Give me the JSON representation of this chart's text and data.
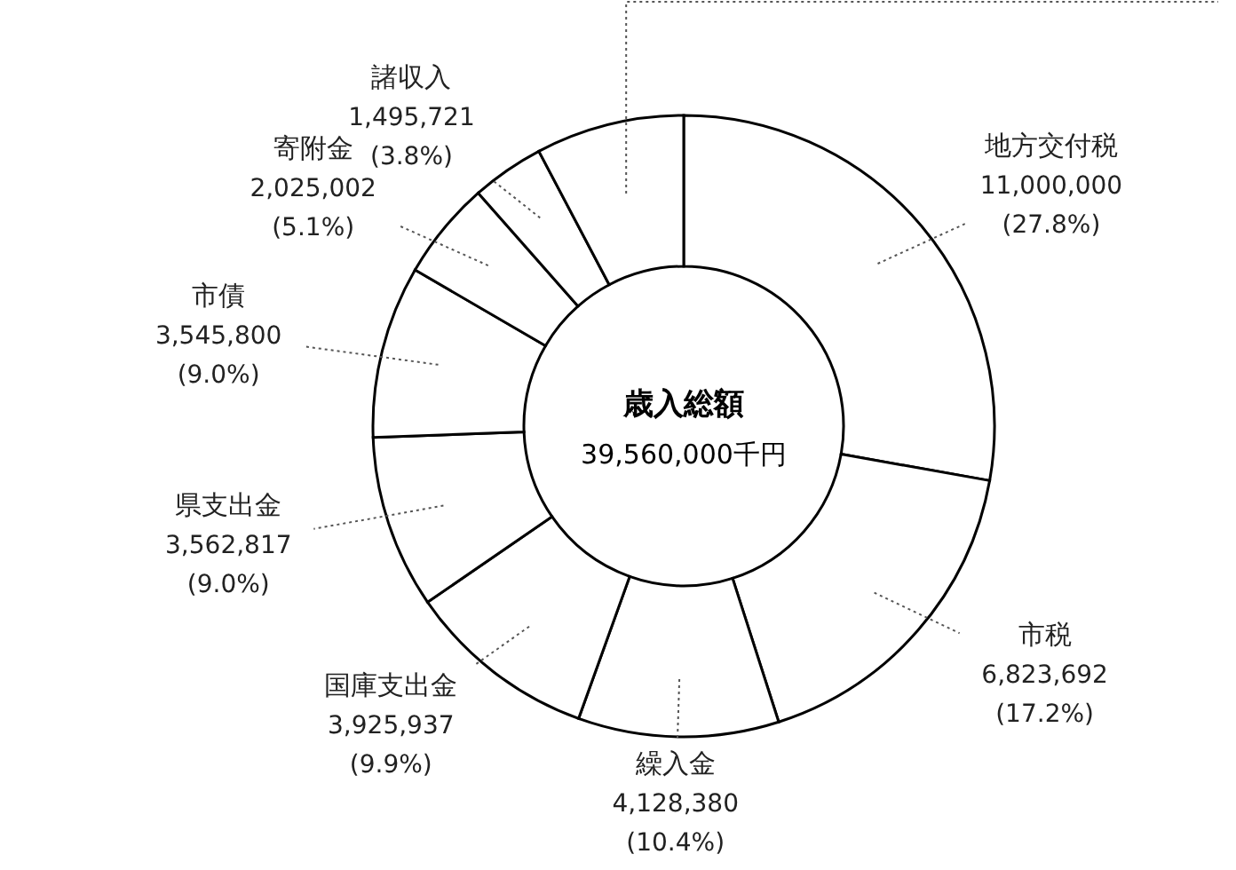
{
  "chart_data": {
    "type": "donut",
    "annotations": [
      "歳入総額",
      "39,560,000千円"
    ],
    "categories": [
      "地方交付税",
      "市税",
      "繰入金",
      "国庫支出金",
      "県支出金",
      "市債",
      "寄附金",
      "諸収入",
      null
    ],
    "values": [
      11000000,
      6823692,
      4128380,
      3925937,
      3562817,
      3545800,
      2025002,
      1495721,
      3052651
    ],
    "colors": [
      "#ffffff",
      "#ffffff",
      "#ffffff",
      "#ffffff",
      "#ffffff",
      "#ffffff",
      "#ffffff",
      "#ffffff",
      "#ffffff"
    ],
    "value_labels": [
      "11,000,000\n(27.8%)",
      "6,823,692\n(17.2%)",
      "4,128,380\n(10.4%)",
      "3,925,937\n(9.9%)",
      "3,562,817\n(9.0%)",
      "3,545,800\n(9.0%)",
      "2,025,002\n(5.1%)",
      "1,495,721\n(3.8%)",
      null
    ]
  }
}
